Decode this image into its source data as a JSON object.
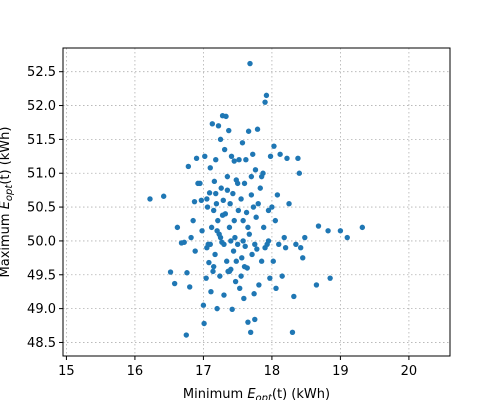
{
  "chart_data": {
    "type": "scatter",
    "xlabel": {
      "pre": "Minimum ",
      "var": "E",
      "sub": "opt",
      "post": "(t) (kWh)"
    },
    "ylabel": {
      "pre": "Maximum ",
      "var": "E",
      "sub": "opt",
      "post": "(t) (kWh)"
    },
    "xlim": [
      14.95,
      20.6
    ],
    "ylim": [
      48.3,
      52.85
    ],
    "xticks": [
      "15",
      "16",
      "17",
      "18",
      "19",
      "20"
    ],
    "yticks": [
      "48.5",
      "49.0",
      "49.5",
      "50.0",
      "50.5",
      "51.0",
      "51.5",
      "52.0",
      "52.5"
    ],
    "grid": true,
    "marker_color": "#1f77b4",
    "points": [
      [
        16.22,
        50.62
      ],
      [
        16.42,
        50.66
      ],
      [
        16.52,
        49.54
      ],
      [
        16.58,
        49.37
      ],
      [
        16.62,
        50.2
      ],
      [
        16.68,
        49.97
      ],
      [
        16.72,
        49.98
      ],
      [
        16.75,
        48.61
      ],
      [
        16.76,
        49.53
      ],
      [
        16.78,
        51.1
      ],
      [
        16.8,
        49.32
      ],
      [
        16.82,
        50.05
      ],
      [
        16.85,
        50.3
      ],
      [
        16.87,
        50.58
      ],
      [
        16.88,
        49.85
      ],
      [
        16.9,
        51.22
      ],
      [
        16.92,
        50.85
      ],
      [
        16.95,
        50.85
      ],
      [
        16.97,
        50.6
      ],
      [
        16.98,
        50.15
      ],
      [
        17.0,
        49.05
      ],
      [
        17.01,
        48.78
      ],
      [
        17.02,
        51.25
      ],
      [
        17.04,
        49.45
      ],
      [
        17.05,
        49.9
      ],
      [
        17.06,
        50.5
      ],
      [
        17.07,
        49.95
      ],
      [
        17.08,
        49.68
      ],
      [
        17.09,
        50.71
      ],
      [
        17.1,
        51.08
      ],
      [
        17.11,
        49.25
      ],
      [
        17.12,
        50.2
      ],
      [
        17.13,
        51.73
      ],
      [
        17.14,
        49.55
      ],
      [
        17.15,
        50.45
      ],
      [
        17.16,
        50.88
      ],
      [
        17.17,
        49.8
      ],
      [
        17.18,
        51.2
      ],
      [
        17.19,
        50.55
      ],
      [
        17.2,
        49.0
      ],
      [
        17.21,
        50.3
      ],
      [
        17.22,
        51.7
      ],
      [
        17.23,
        50.1
      ],
      [
        17.24,
        49.48
      ],
      [
        17.25,
        51.5
      ],
      [
        17.26,
        50.78
      ],
      [
        17.27,
        49.98
      ],
      [
        17.28,
        51.85
      ],
      [
        17.29,
        50.6
      ],
      [
        17.3,
        49.2
      ],
      [
        17.31,
        51.35
      ],
      [
        17.32,
        50.4
      ],
      [
        17.33,
        51.84
      ],
      [
        17.34,
        49.7
      ],
      [
        17.35,
        50.95
      ],
      [
        17.36,
        49.55
      ],
      [
        17.37,
        51.63
      ],
      [
        17.38,
        50.2
      ],
      [
        17.39,
        50.55
      ],
      [
        17.4,
        49.58
      ],
      [
        17.41,
        51.25
      ],
      [
        17.42,
        48.99
      ],
      [
        17.43,
        50.7
      ],
      [
        17.44,
        49.85
      ],
      [
        17.45,
        51.18
      ],
      [
        17.46,
        50.05
      ],
      [
        17.47,
        49.4
      ],
      [
        17.48,
        50.9
      ],
      [
        17.5,
        49.95
      ],
      [
        17.51,
        50.45
      ],
      [
        17.52,
        51.2
      ],
      [
        17.53,
        49.3
      ],
      [
        17.55,
        50.62
      ],
      [
        17.56,
        49.75
      ],
      [
        17.57,
        51.45
      ],
      [
        17.58,
        50.3
      ],
      [
        17.59,
        49.15
      ],
      [
        17.6,
        50.85
      ],
      [
        17.61,
        49.92
      ],
      [
        17.62,
        51.2
      ],
      [
        17.63,
        50.42
      ],
      [
        17.64,
        49.6
      ],
      [
        17.65,
        48.8
      ],
      [
        17.66,
        51.62
      ],
      [
        17.67,
        50.1
      ],
      [
        17.68,
        52.62
      ],
      [
        17.69,
        48.65
      ],
      [
        17.7,
        50.95
      ],
      [
        17.71,
        49.8
      ],
      [
        17.72,
        51.28
      ],
      [
        17.73,
        50.5
      ],
      [
        17.74,
        49.22
      ],
      [
        17.75,
        48.84
      ],
      [
        17.76,
        51.05
      ],
      [
        17.77,
        50.35
      ],
      [
        17.78,
        49.88
      ],
      [
        17.79,
        51.65
      ],
      [
        17.8,
        50.55
      ],
      [
        17.81,
        49.35
      ],
      [
        17.83,
        50.78
      ],
      [
        17.85,
        49.7
      ],
      [
        17.87,
        51.0
      ],
      [
        17.88,
        50.2
      ],
      [
        17.9,
        52.05
      ],
      [
        17.92,
        52.15
      ],
      [
        17.93,
        49.95
      ],
      [
        17.95,
        50.45
      ],
      [
        17.97,
        49.45
      ],
      [
        17.98,
        51.25
      ],
      [
        18.0,
        50.5
      ],
      [
        18.02,
        49.7
      ],
      [
        18.03,
        51.4
      ],
      [
        18.05,
        50.3
      ],
      [
        18.06,
        49.3
      ],
      [
        18.08,
        50.68
      ],
      [
        18.1,
        49.95
      ],
      [
        18.12,
        51.28
      ],
      [
        18.15,
        49.48
      ],
      [
        18.18,
        50.05
      ],
      [
        18.2,
        49.9
      ],
      [
        18.22,
        51.22
      ],
      [
        18.25,
        50.55
      ],
      [
        18.3,
        48.65
      ],
      [
        18.32,
        49.18
      ],
      [
        18.35,
        49.95
      ],
      [
        18.38,
        51.22
      ],
      [
        18.4,
        51.0
      ],
      [
        18.42,
        49.9
      ],
      [
        18.45,
        49.75
      ],
      [
        18.48,
        50.05
      ],
      [
        18.65,
        49.35
      ],
      [
        18.68,
        50.22
      ],
      [
        18.82,
        50.15
      ],
      [
        18.85,
        49.45
      ],
      [
        19.0,
        50.15
      ],
      [
        19.1,
        50.05
      ],
      [
        19.32,
        50.2
      ],
      [
        17.15,
        49.62
      ],
      [
        17.25,
        50.05
      ],
      [
        17.45,
        50.3
      ],
      [
        17.55,
        49.48
      ],
      [
        17.35,
        50.75
      ],
      [
        17.65,
        50.2
      ],
      [
        17.85,
        50.95
      ],
      [
        17.05,
        50.62
      ],
      [
        17.2,
        50.15
      ],
      [
        17.4,
        50.0
      ],
      [
        17.6,
        49.62
      ],
      [
        17.3,
        49.95
      ],
      [
        17.5,
        50.85
      ],
      [
        17.75,
        49.95
      ],
      [
        17.95,
        50.0
      ],
      [
        17.1,
        49.95
      ],
      [
        17.28,
        50.38
      ],
      [
        17.48,
        49.7
      ],
      [
        17.7,
        50.68
      ],
      [
        17.9,
        49.9
      ],
      [
        17.18,
        50.7
      ],
      [
        17.58,
        50.0
      ],
      [
        17.38,
        49.55
      ]
    ]
  }
}
